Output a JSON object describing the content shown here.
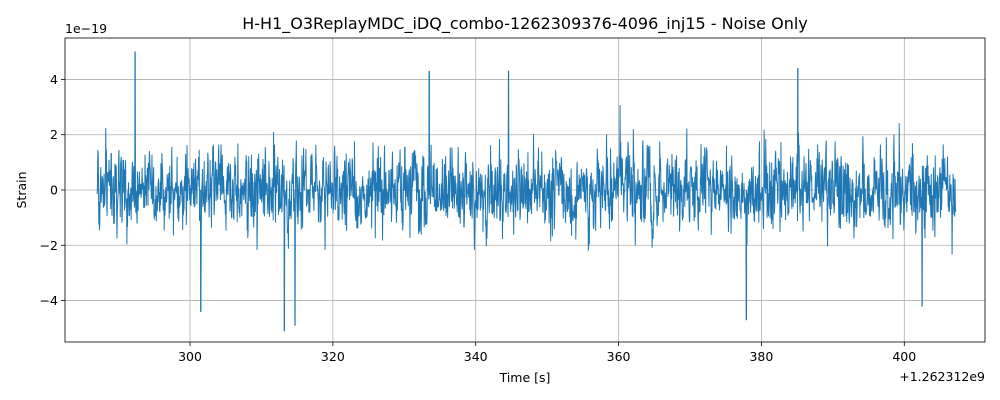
{
  "chart_data": {
    "type": "line",
    "title": "H-H1_O3ReplayMDC_iDQ_combo-1262309376-4096_inj15 - Noise Only",
    "xlabel": "Time [s]",
    "ylabel": "Strain",
    "x_offset_label": "+1.262312e9",
    "y_scale_label": "1e−19",
    "xlim": [
      282.5,
      411.3
    ],
    "ylim": [
      -5.5,
      5.5
    ],
    "x_range": [
      287.0,
      407.2
    ],
    "x_ticks": [
      {
        "value": 300,
        "label": "300"
      },
      {
        "value": 320,
        "label": "320"
      },
      {
        "value": 340,
        "label": "340"
      },
      {
        "value": 360,
        "label": "360"
      },
      {
        "value": 380,
        "label": "380"
      },
      {
        "value": 400,
        "label": "400"
      }
    ],
    "y_ticks": [
      {
        "value": -4,
        "label": "−4"
      },
      {
        "value": -2,
        "label": "−2"
      },
      {
        "value": 0,
        "label": "0"
      },
      {
        "value": 2,
        "label": "2"
      },
      {
        "value": 4,
        "label": "4"
      }
    ],
    "grid": true,
    "color": "#1f77b4",
    "series": [
      {
        "description": "whitened strain noise, approx. 1 sample per 0.1 s rendered",
        "envelope_peaks": [
          {
            "x": 292.3,
            "y": 5.0
          },
          {
            "x": 313.2,
            "y": -5.1
          },
          {
            "x": 314.7,
            "y": -4.9
          },
          {
            "x": 333.5,
            "y": 4.3
          },
          {
            "x": 344.6,
            "y": 4.3
          },
          {
            "x": 385.1,
            "y": 4.4
          },
          {
            "x": 377.9,
            "y": -4.7
          },
          {
            "x": 301.5,
            "y": -4.4
          },
          {
            "x": 402.5,
            "y": -4.2
          }
        ]
      }
    ]
  }
}
